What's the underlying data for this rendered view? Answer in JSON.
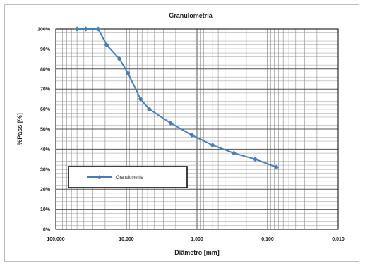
{
  "chart_data": {
    "type": "line",
    "title": "Granulometria",
    "xlabel": "Diâmetro [mm]",
    "ylabel": "%Pass [%]",
    "x_scale": "log",
    "x_reversed": true,
    "xlim": [
      100,
      0.01
    ],
    "ylim": [
      0,
      100
    ],
    "x_ticks": [
      100,
      10,
      1,
      0.1,
      0.01
    ],
    "x_tick_labels": [
      "100,000",
      "10,000",
      "1,000",
      "0,100",
      "0,010"
    ],
    "y_ticks": [
      0,
      10,
      20,
      30,
      40,
      50,
      60,
      70,
      80,
      90,
      100
    ],
    "y_tick_labels": [
      "0%",
      "10%",
      "20%",
      "30%",
      "40%",
      "50%",
      "60%",
      "70%",
      "80%",
      "90%",
      "100%"
    ],
    "grid": true,
    "legend_position": "lower-left",
    "color": "#4a7ebb",
    "series": [
      {
        "name": "Granulometria",
        "x": [
          50,
          37.5,
          25,
          19,
          12.5,
          9.5,
          6.3,
          4.75,
          2.36,
          1.18,
          0.6,
          0.3,
          0.15,
          0.075
        ],
        "y": [
          100,
          100,
          100,
          92,
          85,
          78,
          65,
          60,
          53,
          47,
          42,
          38,
          35,
          31
        ]
      }
    ]
  }
}
